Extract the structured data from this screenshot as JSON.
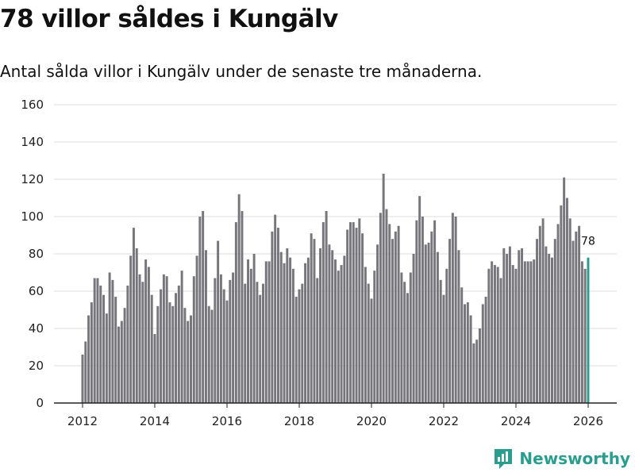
{
  "title": "78 villor såldes i Kungälv",
  "subtitle": "Antal sålda villor i Kungälv under de senaste tre månaderna.",
  "brand": "Newsworthy",
  "colors": {
    "bar": "#77767b",
    "highlight": "#2a9d8f",
    "grid": "#dddddd",
    "axis": "#222222",
    "brand": "#2a9d8f"
  },
  "chart_data": {
    "type": "bar",
    "title": "78 villor såldes i Kungälv",
    "xlabel": "",
    "ylabel": "",
    "ylim": [
      0,
      160
    ],
    "yticks": [
      0,
      20,
      40,
      60,
      80,
      100,
      120,
      140,
      160
    ],
    "xticks": [
      2012,
      2014,
      2016,
      2018,
      2020,
      2022,
      2024,
      2026
    ],
    "x_start": 2012.0,
    "x_step": 0.08333,
    "highlight_last": true,
    "last_label": "78",
    "series": [
      {
        "name": "Antal sålda villor",
        "values": [
          26,
          33,
          47,
          54,
          67,
          67,
          63,
          58,
          48,
          70,
          66,
          57,
          41,
          44,
          51,
          63,
          79,
          94,
          83,
          69,
          65,
          77,
          73,
          58,
          37,
          52,
          61,
          69,
          68,
          54,
          52,
          59,
          63,
          71,
          51,
          44,
          47,
          68,
          79,
          100,
          103,
          82,
          52,
          50,
          67,
          87,
          69,
          61,
          55,
          66,
          70,
          97,
          112,
          103,
          64,
          77,
          72,
          80,
          65,
          58,
          64,
          76,
          76,
          92,
          101,
          94,
          81,
          75,
          83,
          78,
          72,
          57,
          61,
          64,
          75,
          78,
          91,
          88,
          67,
          83,
          97,
          103,
          85,
          82,
          77,
          71,
          74,
          79,
          93,
          97,
          97,
          94,
          99,
          91,
          73,
          64,
          56,
          71,
          85,
          102,
          123,
          104,
          96,
          88,
          92,
          95,
          70,
          65,
          59,
          70,
          80,
          98,
          111,
          100,
          85,
          86,
          92,
          98,
          81,
          66,
          58,
          72,
          88,
          102,
          100,
          82,
          62,
          53,
          54,
          47,
          32,
          34,
          40,
          53,
          57,
          72,
          76,
          74,
          73,
          67,
          83,
          80,
          84,
          74,
          72,
          82,
          83,
          76,
          76,
          76,
          77,
          88,
          95,
          99,
          84,
          80,
          78,
          88,
          96,
          106,
          121,
          110,
          99,
          87,
          92,
          95,
          76,
          72,
          78
        ]
      }
    ]
  }
}
